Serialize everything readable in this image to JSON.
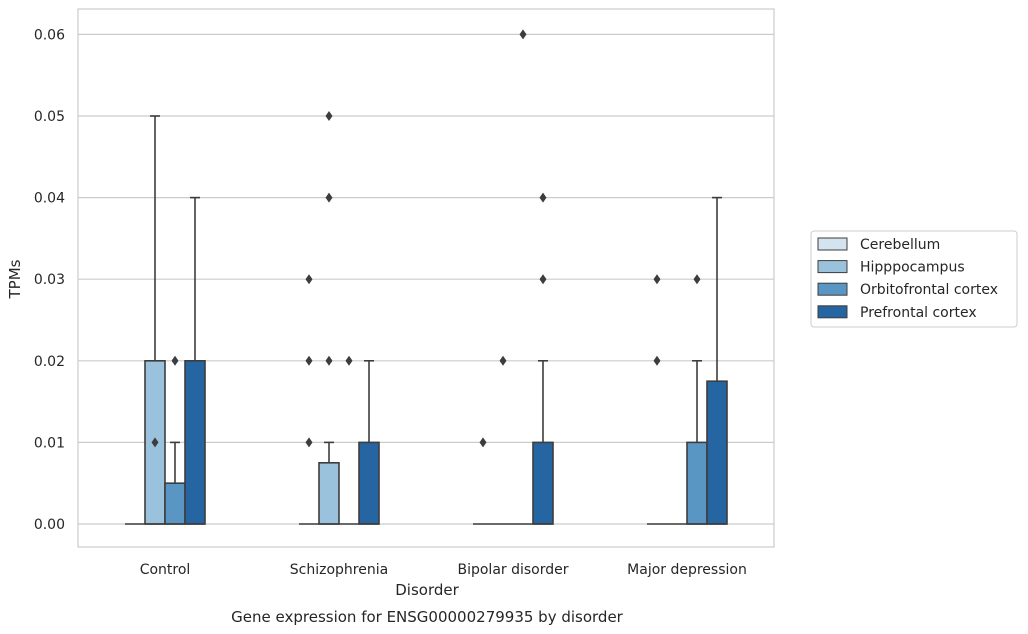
{
  "chart_data": {
    "type": "box",
    "title": "",
    "caption": "Gene expression for ENSG00000279935 by disorder",
    "xlabel": "Disorder",
    "ylabel": "TPMs",
    "ylim": [
      -0.003,
      0.063
    ],
    "yticks": [
      0.0,
      0.01,
      0.02,
      0.03,
      0.04,
      0.05,
      0.06
    ],
    "ytick_labels": [
      "0.00",
      "0.01",
      "0.02",
      "0.03",
      "0.04",
      "0.05",
      "0.06"
    ],
    "grid": "horizontal",
    "legend_position": "right",
    "categories": [
      "Control",
      "Schizophrenia",
      "Bipolar disorder",
      "Major depression"
    ],
    "series": [
      {
        "name": "Cerebellum",
        "color": "#d3e3ef",
        "boxes": [
          {
            "q1": 0.0,
            "median": 0.0,
            "q3": 0.0,
            "whisker_low": 0.0,
            "whisker_high": 0.0,
            "outliers": []
          },
          {
            "q1": 0.0,
            "median": 0.0,
            "q3": 0.0,
            "whisker_low": 0.0,
            "whisker_high": 0.0,
            "outliers": []
          },
          {
            "q1": 0.0,
            "median": 0.0,
            "q3": 0.0,
            "whisker_low": 0.0,
            "whisker_high": 0.0,
            "outliers": [
              0.01
            ]
          },
          {
            "q1": 0.0,
            "median": 0.0,
            "q3": 0.0,
            "whisker_low": 0.0,
            "whisker_high": 0.0,
            "outliers": []
          }
        ]
      },
      {
        "name": "Hipppocampus",
        "color": "#9bc2dc",
        "boxes": [
          {
            "q1": 0.0,
            "median": 0.0,
            "q3": 0.02,
            "whisker_low": 0.0,
            "whisker_high": 0.05,
            "outliers": [
              0.01
            ]
          },
          {
            "q1": 0.0,
            "median": 0.0,
            "q3": 0.0075,
            "whisker_low": 0.0,
            "whisker_high": 0.01,
            "outliers": [
              0.02,
              0.04,
              0.05
            ]
          },
          {
            "q1": 0.0,
            "median": 0.0,
            "q3": 0.0,
            "whisker_low": 0.0,
            "whisker_high": 0.0,
            "outliers": [
              0.02
            ]
          },
          {
            "q1": 0.0,
            "median": 0.0,
            "q3": 0.0,
            "whisker_low": 0.0,
            "whisker_high": 0.0,
            "outliers": []
          }
        ]
      },
      {
        "name": "Orbitofrontal cortex",
        "color": "#5a96c3",
        "boxes": [
          {
            "q1": 0.0,
            "median": 0.0,
            "q3": 0.005,
            "whisker_low": 0.0,
            "whisker_high": 0.01,
            "outliers": [
              0.02
            ]
          },
          {
            "q1": 0.0,
            "median": 0.0,
            "q3": 0.0,
            "whisker_low": 0.0,
            "whisker_high": 0.0,
            "outliers": [
              0.02
            ]
          },
          {
            "q1": 0.0,
            "median": 0.0,
            "q3": 0.0,
            "whisker_low": 0.0,
            "whisker_high": 0.0,
            "outliers": [
              0.06
            ]
          },
          {
            "q1": 0.0,
            "median": 0.0,
            "q3": 0.01,
            "whisker_low": 0.0,
            "whisker_high": 0.02,
            "outliers": [
              0.03
            ]
          }
        ]
      },
      {
        "name": "Prefrontal cortex",
        "color": "#2565a2",
        "boxes": [
          {
            "q1": 0.0,
            "median": 0.0,
            "q3": 0.02,
            "whisker_low": 0.0,
            "whisker_high": 0.04,
            "outliers": []
          },
          {
            "q1": 0.0,
            "median": 0.0,
            "q3": 0.01,
            "whisker_low": 0.0,
            "whisker_high": 0.02,
            "outliers": []
          },
          {
            "q1": 0.0,
            "median": 0.0,
            "q3": 0.01,
            "whisker_low": 0.0,
            "whisker_high": 0.02,
            "outliers": [
              0.03,
              0.04
            ]
          },
          {
            "q1": 0.0,
            "median": 0.0,
            "q3": 0.0175,
            "whisker_low": 0.0,
            "whisker_high": 0.04,
            "outliers": []
          }
        ]
      }
    ],
    "extra_outliers_left_of_group": [
      {
        "category": "Schizophrenia",
        "values": [
          0.01,
          0.02,
          0.03
        ]
      },
      {
        "category": "Major depression",
        "values": [
          0.02,
          0.03
        ]
      }
    ]
  }
}
